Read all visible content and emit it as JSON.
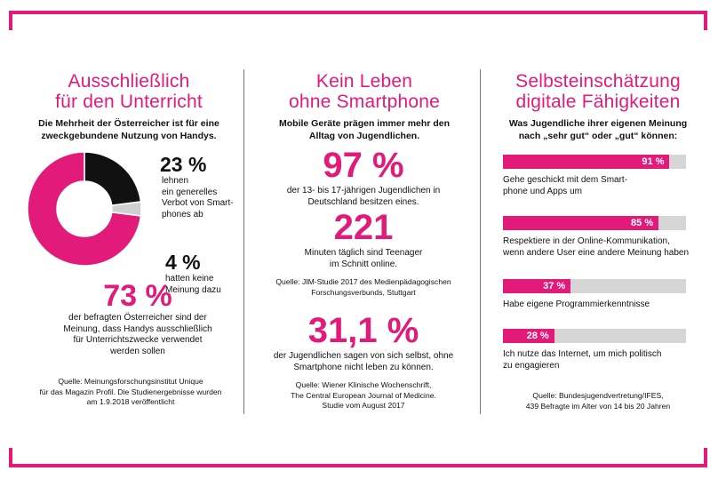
{
  "colors": {
    "accent": "#e21a7a",
    "track": "#d6d6d6",
    "dark": "#111111",
    "light": "#cfcfcf"
  },
  "col1": {
    "title_line1": "Ausschließlich",
    "title_line2": "für den Unterricht",
    "subtitle": "Die Mehrheit der Österreicher ist für eine\nzweckgebundene Nutzung von Handys.",
    "stat_a_num": "23 %",
    "stat_a_desc": "lehnen\nein generelles\nVerbot von Smart-\nphones ab",
    "stat_b_num": "4 %",
    "stat_b_desc": "hatten keine\nMeinung dazu",
    "stat_c_num": "73 %",
    "stat_c_desc": "der befragten Österreicher sind der\nMeinung, dass Handys ausschließlich\nfür Unterrichtszwecke verwendet\nwerden sollen",
    "source": "Quelle: Meinungsforschungsinstitut Unique\nfür das Magazin Profil. Die Studienergebnisse wurden\nam 1.9.2018 veröffentlicht"
  },
  "col2": {
    "title_line1": "Kein Leben",
    "title_line2": "ohne Smartphone",
    "subtitle": "Mobile Geräte prägen immer mehr den\nAlltag von Jugendlichen.",
    "stat1_num": "97 %",
    "stat1_desc": "der 13- bis 17-jährigen Jugendlichen in\nDeutschland besitzen eines.",
    "stat2_num": "221",
    "stat2_desc": "Minuten täglich sind Teenager\nim Schnitt online.",
    "source1": "Quelle: JIM-Studie 2017 des Medienpädagogischen\nForschungsverbunds, Stuttgart",
    "stat3_num": "31,1 %",
    "stat3_desc": "der Jugendlichen sagen von sich selbst, ohne\nSmartphone nicht leben zu können.",
    "source2": "Quelle: Wiener Klinische Wochenschrift,\nThe Central European Journal of Medicine.\nStudie vom August 2017"
  },
  "col3": {
    "title_line1": "Selbsteinschätzung",
    "title_line2": "digitale Fähigkeiten",
    "subtitle": "Was Jugendliche ihrer eigenen Meinung\nnach „sehr gut“ oder „gut“ können:",
    "source": "Quelle: Bundesjugendvertretung/IFES,\n439 Befragte im Alter von 14 bis 20 Jahren"
  },
  "chart_data": [
    {
      "type": "pie",
      "style": "donut",
      "categories": [
        "lehnen ein generelles Verbot von Smartphones ab",
        "hatten keine Meinung dazu",
        "für ausschließlich Unterrichtszwecke"
      ],
      "values": [
        23,
        4,
        73
      ],
      "colors": [
        "#111111",
        "#cfcfcf",
        "#e21a7a"
      ]
    },
    {
      "type": "bar",
      "orientation": "horizontal",
      "categories": [
        "Gehe geschickt mit dem Smart-\nphone und Apps um",
        "Respektiere in der Online-Kommunikation,\nwenn andere User eine andere Meinung haben",
        "Habe eigene Programmierkenntnisse",
        "Ich nutze das Internet, um mich politisch\nzu engagieren"
      ],
      "values": [
        91,
        85,
        37,
        28
      ],
      "value_labels": [
        "91 %",
        "85 %",
        "37 %",
        "28 %"
      ],
      "ylim": [
        0,
        100
      ]
    }
  ]
}
